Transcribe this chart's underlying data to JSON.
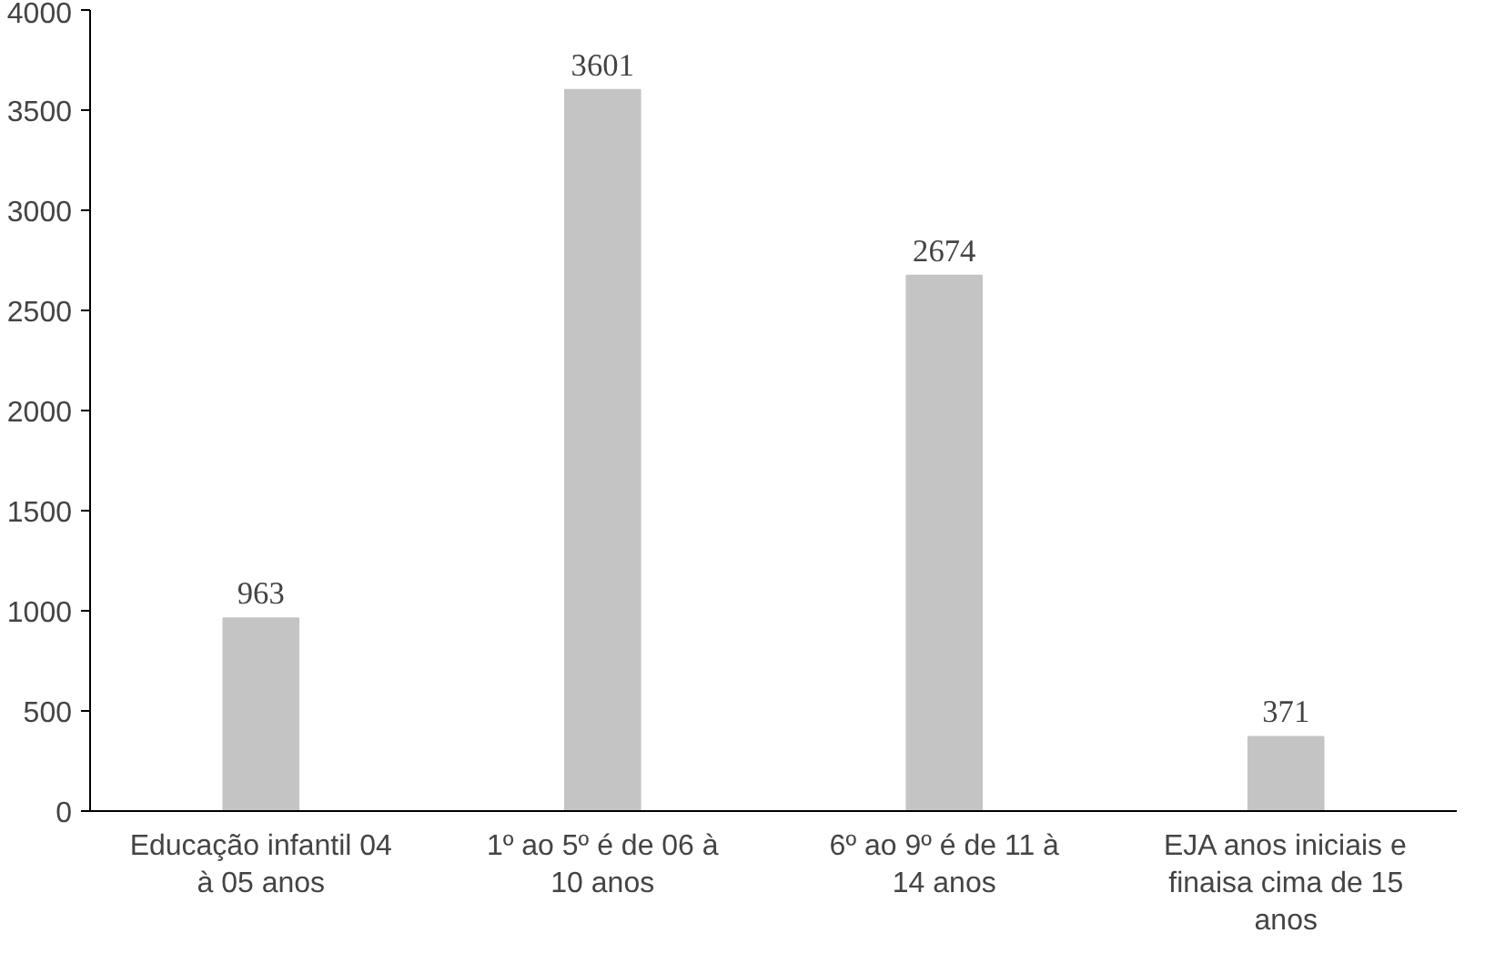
{
  "chart_data": {
    "type": "bar",
    "categories": [
      "Educação infantil 04 à 05 anos",
      "1º ao 5º é de 06 à 10 anos",
      "6º ao 9º é de 11 à 14 anos",
      "EJA anos iniciais e finaisa cima de 15 anos"
    ],
    "values": [
      963,
      3601,
      2674,
      371
    ],
    "color": "#c4c4c4",
    "ylim": [
      0,
      4000
    ],
    "yticks": [
      0,
      500,
      1000,
      1500,
      2000,
      2500,
      3000,
      3500,
      4000
    ],
    "grid": false,
    "data_labels": true
  }
}
